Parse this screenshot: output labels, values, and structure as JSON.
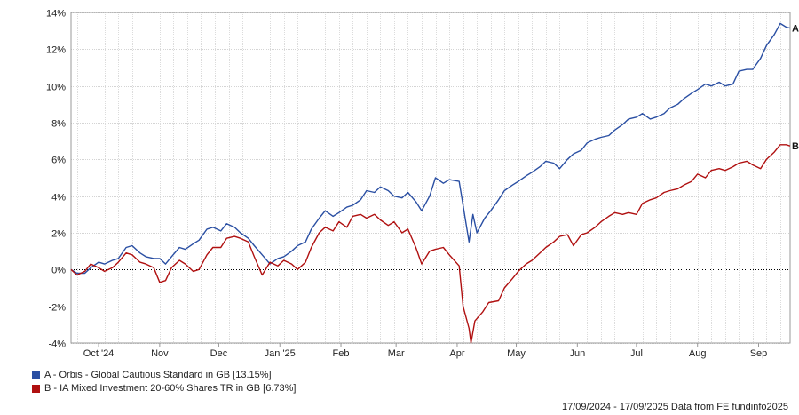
{
  "chart_data": {
    "type": "line",
    "date_range": "17/09/2024 - 17/09/2025",
    "ylim": [
      -4,
      14
    ],
    "yticks": [
      14,
      12,
      10,
      8,
      6,
      4,
      2,
      0,
      -2,
      -4
    ],
    "ytick_labels": [
      "14%",
      "12%",
      "10%",
      "8%",
      "6%",
      "4%",
      "2%",
      "0%",
      "-2%",
      "-4%"
    ],
    "xtick_labels": [
      {
        "label": "Oct '24",
        "date": "2024-10-01"
      },
      {
        "label": "Nov",
        "date": "2024-11-01"
      },
      {
        "label": "Dec",
        "date": "2024-12-01"
      },
      {
        "label": "Jan '25",
        "date": "2025-01-01"
      },
      {
        "label": "Feb",
        "date": "2025-02-01"
      },
      {
        "label": "Mar",
        "date": "2025-03-01"
      },
      {
        "label": "Apr",
        "date": "2025-04-01"
      },
      {
        "label": "May",
        "date": "2025-05-01"
      },
      {
        "label": "Jun",
        "date": "2025-06-01"
      },
      {
        "label": "Jul",
        "date": "2025-07-01"
      },
      {
        "label": "Aug",
        "date": "2025-08-01"
      },
      {
        "label": "Sep",
        "date": "2025-09-01"
      }
    ],
    "x_start": "2024-09-17",
    "x_end": "2025-09-17",
    "grid": true,
    "zero_line": "dotted",
    "series": [
      {
        "name": "A - Orbis - Global Cautious Standard in GB [13.15%]",
        "end_label": "A",
        "color": "#2a4fa3",
        "points": [
          [
            "2024-09-17",
            0.0
          ],
          [
            "2024-09-20",
            -0.2
          ],
          [
            "2024-09-24",
            -0.2
          ],
          [
            "2024-09-27",
            0.1
          ],
          [
            "2024-10-01",
            0.4
          ],
          [
            "2024-10-04",
            0.3
          ],
          [
            "2024-10-08",
            0.5
          ],
          [
            "2024-10-11",
            0.6
          ],
          [
            "2024-10-15",
            1.2
          ],
          [
            "2024-10-18",
            1.3
          ],
          [
            "2024-10-22",
            0.9
          ],
          [
            "2024-10-25",
            0.7
          ],
          [
            "2024-10-29",
            0.6
          ],
          [
            "2024-11-01",
            0.6
          ],
          [
            "2024-11-04",
            0.3
          ],
          [
            "2024-11-07",
            0.7
          ],
          [
            "2024-11-11",
            1.2
          ],
          [
            "2024-11-14",
            1.1
          ],
          [
            "2024-11-18",
            1.4
          ],
          [
            "2024-11-21",
            1.6
          ],
          [
            "2024-11-25",
            2.2
          ],
          [
            "2024-11-28",
            2.3
          ],
          [
            "2024-12-02",
            2.1
          ],
          [
            "2024-12-05",
            2.5
          ],
          [
            "2024-12-09",
            2.3
          ],
          [
            "2024-12-12",
            2.0
          ],
          [
            "2024-12-16",
            1.7
          ],
          [
            "2024-12-19",
            1.3
          ],
          [
            "2024-12-23",
            0.8
          ],
          [
            "2024-12-27",
            0.3
          ],
          [
            "2024-12-31",
            0.6
          ],
          [
            "2025-01-03",
            0.7
          ],
          [
            "2025-01-07",
            1.0
          ],
          [
            "2025-01-10",
            1.3
          ],
          [
            "2025-01-14",
            1.5
          ],
          [
            "2025-01-17",
            2.2
          ],
          [
            "2025-01-21",
            2.8
          ],
          [
            "2025-01-24",
            3.2
          ],
          [
            "2025-01-28",
            2.9
          ],
          [
            "2025-01-31",
            3.1
          ],
          [
            "2025-02-04",
            3.4
          ],
          [
            "2025-02-07",
            3.5
          ],
          [
            "2025-02-11",
            3.8
          ],
          [
            "2025-02-14",
            4.3
          ],
          [
            "2025-02-18",
            4.2
          ],
          [
            "2025-02-21",
            4.5
          ],
          [
            "2025-02-25",
            4.3
          ],
          [
            "2025-02-28",
            4.0
          ],
          [
            "2025-03-04",
            3.9
          ],
          [
            "2025-03-07",
            4.2
          ],
          [
            "2025-03-11",
            3.7
          ],
          [
            "2025-03-14",
            3.2
          ],
          [
            "2025-03-18",
            4.0
          ],
          [
            "2025-03-21",
            5.0
          ],
          [
            "2025-03-25",
            4.7
          ],
          [
            "2025-03-28",
            4.9
          ],
          [
            "2025-04-02",
            4.8
          ],
          [
            "2025-04-04",
            3.5
          ],
          [
            "2025-04-07",
            1.5
          ],
          [
            "2025-04-09",
            3.0
          ],
          [
            "2025-04-11",
            2.0
          ],
          [
            "2025-04-15",
            2.8
          ],
          [
            "2025-04-18",
            3.2
          ],
          [
            "2025-04-22",
            3.8
          ],
          [
            "2025-04-25",
            4.3
          ],
          [
            "2025-04-29",
            4.6
          ],
          [
            "2025-05-02",
            4.8
          ],
          [
            "2025-05-06",
            5.1
          ],
          [
            "2025-05-09",
            5.3
          ],
          [
            "2025-05-13",
            5.6
          ],
          [
            "2025-05-16",
            5.9
          ],
          [
            "2025-05-20",
            5.8
          ],
          [
            "2025-05-23",
            5.5
          ],
          [
            "2025-05-27",
            6.0
          ],
          [
            "2025-05-30",
            6.3
          ],
          [
            "2025-06-03",
            6.5
          ],
          [
            "2025-06-06",
            6.9
          ],
          [
            "2025-06-10",
            7.1
          ],
          [
            "2025-06-13",
            7.2
          ],
          [
            "2025-06-17",
            7.3
          ],
          [
            "2025-06-20",
            7.6
          ],
          [
            "2025-06-24",
            7.9
          ],
          [
            "2025-06-27",
            8.2
          ],
          [
            "2025-07-01",
            8.3
          ],
          [
            "2025-07-04",
            8.5
          ],
          [
            "2025-07-08",
            8.2
          ],
          [
            "2025-07-11",
            8.3
          ],
          [
            "2025-07-15",
            8.5
          ],
          [
            "2025-07-18",
            8.8
          ],
          [
            "2025-07-22",
            9.0
          ],
          [
            "2025-07-25",
            9.3
          ],
          [
            "2025-07-29",
            9.6
          ],
          [
            "2025-08-01",
            9.8
          ],
          [
            "2025-08-05",
            10.1
          ],
          [
            "2025-08-08",
            10.0
          ],
          [
            "2025-08-12",
            10.2
          ],
          [
            "2025-08-15",
            10.0
          ],
          [
            "2025-08-19",
            10.1
          ],
          [
            "2025-08-22",
            10.8
          ],
          [
            "2025-08-26",
            10.9
          ],
          [
            "2025-08-29",
            10.9
          ],
          [
            "2025-09-02",
            11.5
          ],
          [
            "2025-09-05",
            12.2
          ],
          [
            "2025-09-09",
            12.8
          ],
          [
            "2025-09-12",
            13.4
          ],
          [
            "2025-09-15",
            13.2
          ],
          [
            "2025-09-17",
            13.15
          ]
        ]
      },
      {
        "name": "B - IA Mixed Investment 20-60% Shares TR in GB [6.73%]",
        "end_label": "B",
        "color": "#b01010",
        "points": [
          [
            "2024-09-17",
            0.0
          ],
          [
            "2024-09-20",
            -0.3
          ],
          [
            "2024-09-24",
            -0.1
          ],
          [
            "2024-09-27",
            0.3
          ],
          [
            "2024-10-01",
            0.1
          ],
          [
            "2024-10-04",
            -0.1
          ],
          [
            "2024-10-08",
            0.1
          ],
          [
            "2024-10-11",
            0.4
          ],
          [
            "2024-10-15",
            0.9
          ],
          [
            "2024-10-18",
            0.8
          ],
          [
            "2024-10-22",
            0.4
          ],
          [
            "2024-10-25",
            0.3
          ],
          [
            "2024-10-29",
            0.1
          ],
          [
            "2024-11-01",
            -0.7
          ],
          [
            "2024-11-04",
            -0.6
          ],
          [
            "2024-11-07",
            0.1
          ],
          [
            "2024-11-11",
            0.5
          ],
          [
            "2024-11-14",
            0.3
          ],
          [
            "2024-11-18",
            -0.1
          ],
          [
            "2024-11-21",
            0.0
          ],
          [
            "2024-11-25",
            0.8
          ],
          [
            "2024-11-28",
            1.2
          ],
          [
            "2024-12-02",
            1.2
          ],
          [
            "2024-12-05",
            1.7
          ],
          [
            "2024-12-09",
            1.8
          ],
          [
            "2024-12-12",
            1.7
          ],
          [
            "2024-12-16",
            1.5
          ],
          [
            "2024-12-19",
            0.7
          ],
          [
            "2024-12-23",
            -0.3
          ],
          [
            "2024-12-27",
            0.4
          ],
          [
            "2024-12-31",
            0.2
          ],
          [
            "2025-01-03",
            0.5
          ],
          [
            "2025-01-07",
            0.3
          ],
          [
            "2025-01-10",
            0.0
          ],
          [
            "2025-01-14",
            0.4
          ],
          [
            "2025-01-17",
            1.2
          ],
          [
            "2025-01-21",
            2.0
          ],
          [
            "2025-01-24",
            2.3
          ],
          [
            "2025-01-28",
            2.1
          ],
          [
            "2025-01-31",
            2.6
          ],
          [
            "2025-02-04",
            2.3
          ],
          [
            "2025-02-07",
            2.9
          ],
          [
            "2025-02-11",
            3.0
          ],
          [
            "2025-02-14",
            2.8
          ],
          [
            "2025-02-18",
            3.0
          ],
          [
            "2025-02-21",
            2.7
          ],
          [
            "2025-02-25",
            2.4
          ],
          [
            "2025-02-28",
            2.6
          ],
          [
            "2025-03-04",
            2.0
          ],
          [
            "2025-03-07",
            2.2
          ],
          [
            "2025-03-11",
            1.2
          ],
          [
            "2025-03-14",
            0.3
          ],
          [
            "2025-03-18",
            1.0
          ],
          [
            "2025-03-21",
            1.1
          ],
          [
            "2025-03-25",
            1.2
          ],
          [
            "2025-03-28",
            0.8
          ],
          [
            "2025-04-02",
            0.2
          ],
          [
            "2025-04-04",
            -2.0
          ],
          [
            "2025-04-07",
            -3.2
          ],
          [
            "2025-04-08",
            -4.0
          ],
          [
            "2025-04-10",
            -2.8
          ],
          [
            "2025-04-14",
            -2.3
          ],
          [
            "2025-04-17",
            -1.8
          ],
          [
            "2025-04-22",
            -1.7
          ],
          [
            "2025-04-25",
            -1.0
          ],
          [
            "2025-04-29",
            -0.5
          ],
          [
            "2025-05-02",
            -0.1
          ],
          [
            "2025-05-06",
            0.3
          ],
          [
            "2025-05-09",
            0.5
          ],
          [
            "2025-05-13",
            0.9
          ],
          [
            "2025-05-16",
            1.2
          ],
          [
            "2025-05-20",
            1.5
          ],
          [
            "2025-05-23",
            1.8
          ],
          [
            "2025-05-27",
            1.9
          ],
          [
            "2025-05-30",
            1.3
          ],
          [
            "2025-06-03",
            1.9
          ],
          [
            "2025-06-06",
            2.0
          ],
          [
            "2025-06-10",
            2.3
          ],
          [
            "2025-06-13",
            2.6
          ],
          [
            "2025-06-17",
            2.9
          ],
          [
            "2025-06-20",
            3.1
          ],
          [
            "2025-06-24",
            3.0
          ],
          [
            "2025-06-27",
            3.1
          ],
          [
            "2025-07-01",
            3.0
          ],
          [
            "2025-07-04",
            3.6
          ],
          [
            "2025-07-08",
            3.8
          ],
          [
            "2025-07-11",
            3.9
          ],
          [
            "2025-07-15",
            4.2
          ],
          [
            "2025-07-18",
            4.3
          ],
          [
            "2025-07-22",
            4.4
          ],
          [
            "2025-07-25",
            4.6
          ],
          [
            "2025-07-29",
            4.8
          ],
          [
            "2025-08-01",
            5.2
          ],
          [
            "2025-08-05",
            5.0
          ],
          [
            "2025-08-08",
            5.4
          ],
          [
            "2025-08-12",
            5.5
          ],
          [
            "2025-08-15",
            5.4
          ],
          [
            "2025-08-19",
            5.6
          ],
          [
            "2025-08-22",
            5.8
          ],
          [
            "2025-08-26",
            5.9
          ],
          [
            "2025-08-29",
            5.7
          ],
          [
            "2025-09-02",
            5.5
          ],
          [
            "2025-09-05",
            6.0
          ],
          [
            "2025-09-09",
            6.4
          ],
          [
            "2025-09-12",
            6.8
          ],
          [
            "2025-09-15",
            6.8
          ],
          [
            "2025-09-17",
            6.73
          ]
        ]
      }
    ]
  },
  "footer_text": "17/09/2024 - 17/09/2025 Data from FE fundinfo2025",
  "legend": [
    {
      "label": "A - Orbis - Global Cautious Standard in GB [13.15%]",
      "color": "#2a4fa3"
    },
    {
      "label": "B - IA Mixed Investment 20-60% Shares TR in GB [6.73%]",
      "color": "#b01010"
    }
  ]
}
